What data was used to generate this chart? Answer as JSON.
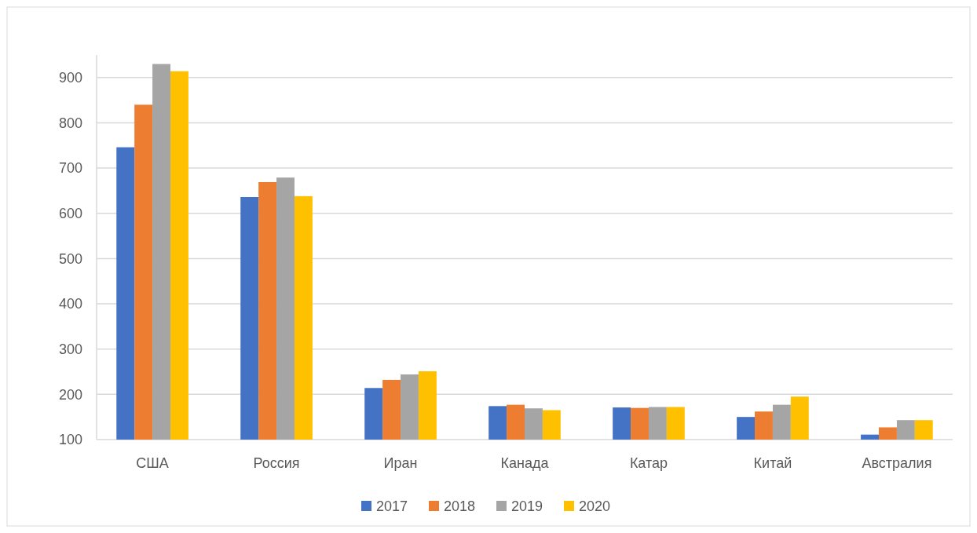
{
  "chart_data": {
    "type": "bar",
    "categories": [
      "США",
      "Россия",
      "Иран",
      "Канада",
      "Катар",
      "Китай",
      "Австралия"
    ],
    "series": [
      {
        "name": "2017",
        "color": "#4472c4",
        "values": [
          746,
          636,
          214,
          174,
          171,
          150,
          111
        ]
      },
      {
        "name": "2018",
        "color": "#ed7d31",
        "values": [
          840,
          669,
          232,
          177,
          170,
          162,
          127
        ]
      },
      {
        "name": "2019",
        "color": "#a5a5a5",
        "values": [
          930,
          679,
          244,
          169,
          172,
          177,
          143
        ]
      },
      {
        "name": "2020",
        "color": "#ffc000",
        "values": [
          914,
          638,
          251,
          165,
          172,
          195,
          143
        ]
      }
    ],
    "ylim": [
      100,
      950
    ],
    "yticks": [
      100,
      200,
      300,
      400,
      500,
      600,
      700,
      800,
      900
    ],
    "grid": "y",
    "legend": "bottom"
  }
}
